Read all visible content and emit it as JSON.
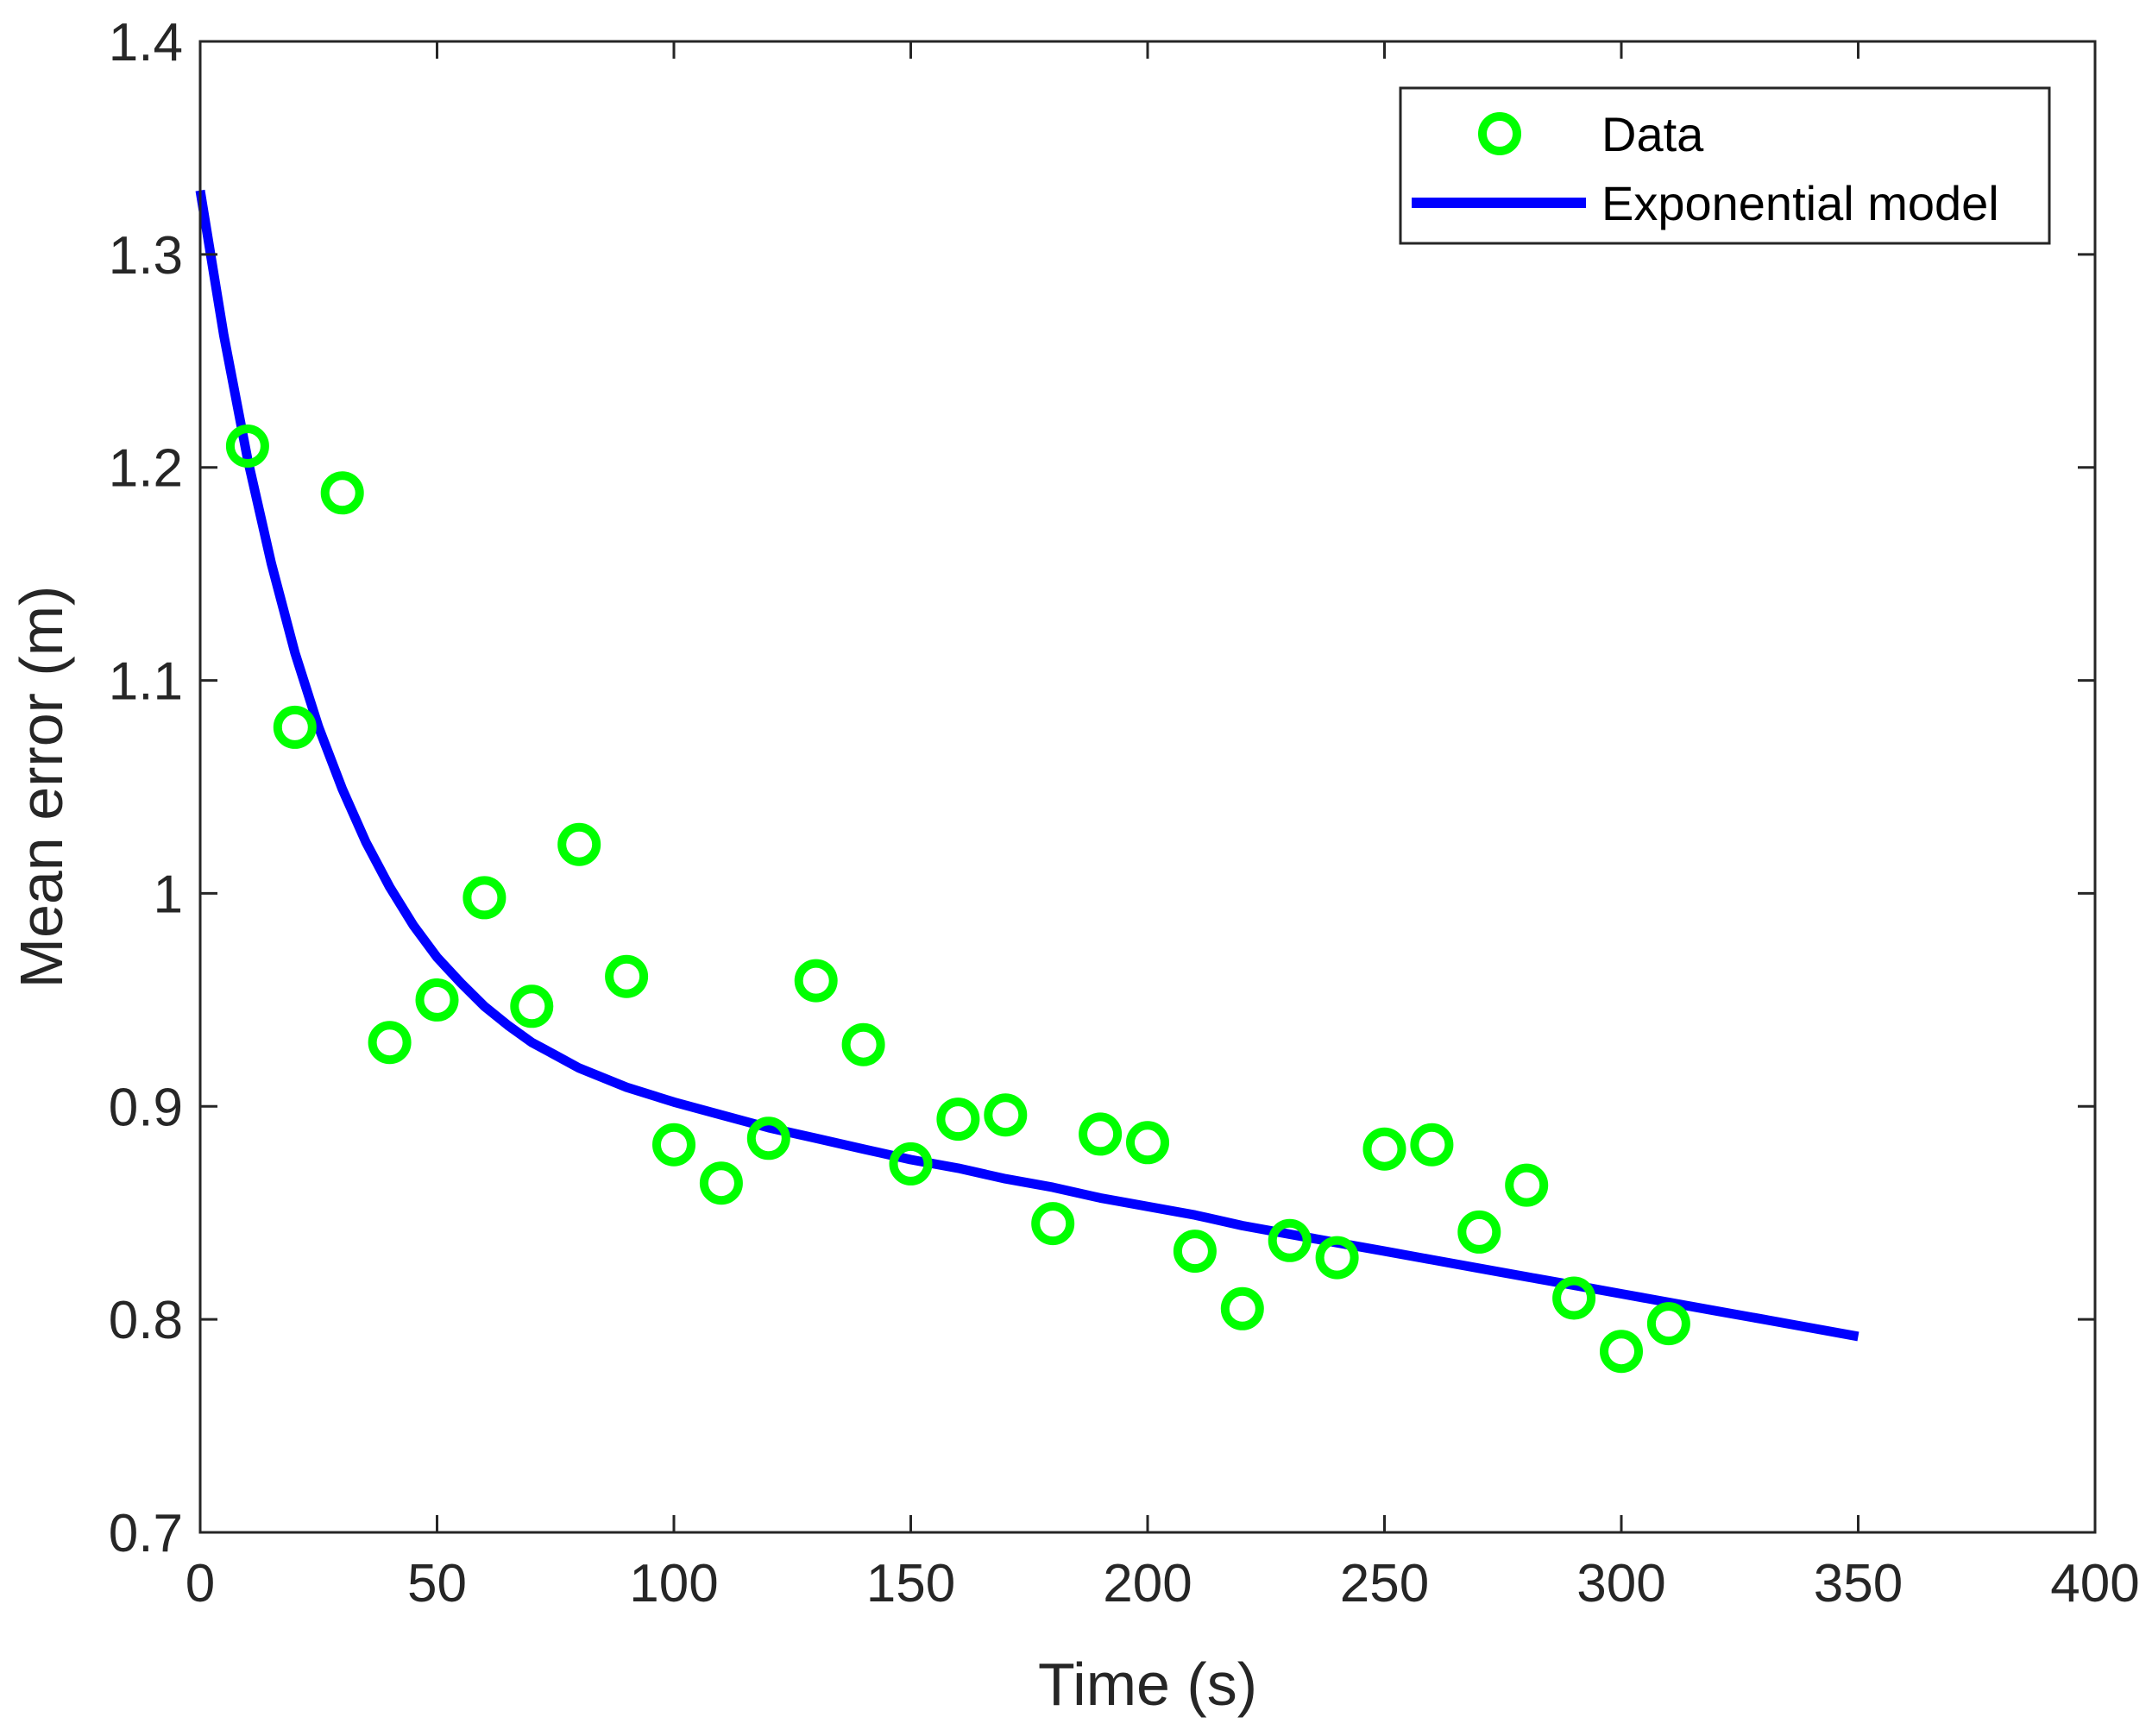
{
  "chart_data": {
    "type": "scatter",
    "title": "",
    "xlabel": "Time (s)",
    "ylabel": "Mean error (m)",
    "xlim": [
      0,
      400
    ],
    "ylim": [
      0.7,
      1.4
    ],
    "xticks": [
      0,
      50,
      100,
      150,
      200,
      250,
      300,
      350,
      400
    ],
    "yticks": [
      0.7,
      0.8,
      0.9,
      1.0,
      1.1,
      1.2,
      1.3,
      1.4
    ],
    "xtick_labels": [
      "0",
      "50",
      "100",
      "150",
      "200",
      "250",
      "300",
      "350",
      "400"
    ],
    "ytick_labels": [
      "0.7",
      "0.8",
      "0.9",
      "1",
      "1.1",
      "1.2",
      "1.3",
      "1.4"
    ],
    "grid": false,
    "legend_position": "top-right",
    "series": [
      {
        "name": "Data",
        "kind": "markers",
        "color": "#00ff00",
        "x": [
          10,
          20,
          30,
          40,
          50,
          60,
          70,
          80,
          90,
          100,
          110,
          120,
          130,
          140,
          150,
          160,
          170,
          180,
          190,
          200,
          210,
          220,
          230,
          240,
          250,
          260,
          270,
          280,
          290,
          300,
          310
        ],
        "y": [
          1.21,
          1.078,
          1.188,
          0.93,
          0.95,
          0.998,
          0.947,
          1.023,
          0.961,
          0.882,
          0.864,
          0.885,
          0.959,
          0.929,
          0.873,
          0.894,
          0.896,
          0.845,
          0.887,
          0.883,
          0.832,
          0.805,
          0.837,
          0.829,
          0.88,
          0.882,
          0.841,
          0.863,
          0.81,
          0.785,
          0.798
        ]
      },
      {
        "name": "Exponential model",
        "kind": "line",
        "color": "#0000ff",
        "x": [
          0,
          5,
          10,
          15,
          20,
          25,
          30,
          35,
          40,
          45,
          50,
          55,
          60,
          65,
          70,
          75,
          80,
          90,
          100,
          110,
          120,
          130,
          140,
          150,
          160,
          170,
          180,
          190,
          200,
          210,
          220,
          230,
          240,
          250,
          260,
          270,
          280,
          290,
          300,
          310,
          320,
          330,
          340,
          350
        ],
        "y": [
          1.33,
          1.262,
          1.204,
          1.155,
          1.113,
          1.078,
          1.049,
          1.024,
          1.003,
          0.985,
          0.97,
          0.958,
          0.947,
          0.938,
          0.93,
          0.924,
          0.918,
          0.909,
          0.902,
          0.896,
          0.89,
          0.885,
          0.88,
          0.875,
          0.871,
          0.866,
          0.862,
          0.857,
          0.853,
          0.849,
          0.844,
          0.84,
          0.836,
          0.832,
          0.828,
          0.824,
          0.82,
          0.816,
          0.812,
          0.808,
          0.804,
          0.8,
          0.796,
          0.792
        ]
      }
    ]
  }
}
